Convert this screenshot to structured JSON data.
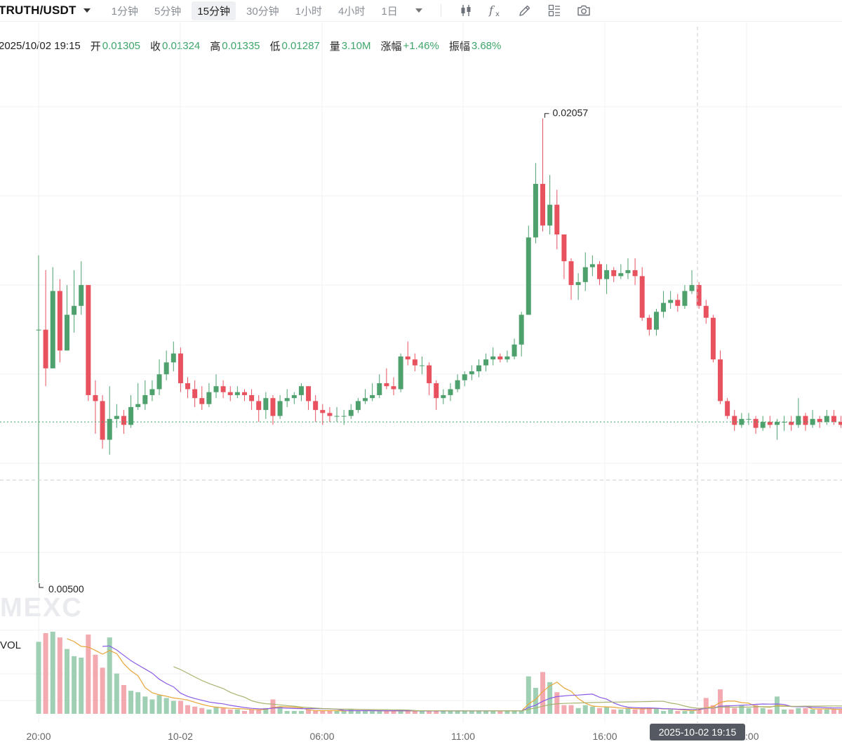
{
  "header": {
    "pair": "TRUTH/USDT",
    "intervals": [
      "1分钟",
      "5分钟",
      "15分钟",
      "30分钟",
      "1小时",
      "4小时",
      "1日"
    ],
    "active_interval": "15分钟",
    "tools": [
      "candlestick-type-icon",
      "indicator-fx-icon",
      "draw-pencil-icon",
      "layout-grid-icon",
      "screenshot-camera-icon"
    ]
  },
  "info": {
    "date": "2025/10/02 19:15",
    "open_label": "开",
    "open": "0.01305",
    "close_label": "收",
    "close": "0.01324",
    "high_label": "高",
    "high": "0.01335",
    "low_label": "低",
    "low": "0.01287",
    "vol_label": "量",
    "vol": "3.10M",
    "change_label": "涨幅",
    "change": "+1.46%",
    "amp_label": "振幅",
    "amp": "3.68%"
  },
  "chart_data": {
    "type": "candlestick",
    "x_tick_labels": [
      "20:00",
      "10-02",
      "06:00",
      "11:00",
      "16:00",
      "21:00"
    ],
    "max_label": "0.02057",
    "min_label": "0.00500",
    "crosshair_time_label": "2025-10-02 19:15",
    "volume_label": "VOL",
    "watermark": "MEXC",
    "colors": {
      "up": "#4ea16d",
      "down": "#e8525f",
      "up_vol": "#9fd0b4",
      "down_vol": "#f3a9b0",
      "ma_a": "#e9a63a",
      "ma_b": "#8a5ce6",
      "ma_c": "#a7b36d"
    },
    "candles": [
      [
        0.0135,
        0.0135,
        0.016,
        0.005,
        5.0
      ],
      [
        0.0135,
        0.0122,
        0.0155,
        0.0116,
        5.6
      ],
      [
        0.0122,
        0.0148,
        0.0156,
        0.0122,
        5.7
      ],
      [
        0.0148,
        0.0128,
        0.0152,
        0.0124,
        5.3
      ],
      [
        0.0128,
        0.014,
        0.015,
        0.0128,
        4.5
      ],
      [
        0.014,
        0.0143,
        0.0155,
        0.0134,
        4.0
      ],
      [
        0.0143,
        0.015,
        0.0158,
        0.014,
        3.9
      ],
      [
        0.015,
        0.0113,
        0.015,
        0.0111,
        5.5
      ],
      [
        0.0113,
        0.0111,
        0.0118,
        0.01,
        4.1
      ],
      [
        0.0111,
        0.0098,
        0.0113,
        0.0095,
        3.2
      ],
      [
        0.0098,
        0.0105,
        0.0116,
        0.0093,
        5.3
      ],
      [
        0.0105,
        0.0106,
        0.011,
        0.0102,
        2.8
      ],
      [
        0.0106,
        0.0103,
        0.0108,
        0.01,
        2.0
      ],
      [
        0.0103,
        0.0109,
        0.0113,
        0.0102,
        1.6
      ],
      [
        0.0109,
        0.011,
        0.0117,
        0.0108,
        1.5
      ],
      [
        0.011,
        0.0113,
        0.0118,
        0.0108,
        1.2
      ],
      [
        0.0113,
        0.0115,
        0.0118,
        0.0111,
        1.0
      ],
      [
        0.0115,
        0.012,
        0.0125,
        0.0113,
        1.3
      ],
      [
        0.012,
        0.0124,
        0.0128,
        0.0118,
        1.1
      ],
      [
        0.0124,
        0.0127,
        0.0131,
        0.0121,
        0.9
      ],
      [
        0.0127,
        0.0117,
        0.0129,
        0.0114,
        0.9
      ],
      [
        0.0117,
        0.0115,
        0.0119,
        0.0112,
        0.6
      ],
      [
        0.0115,
        0.0112,
        0.0118,
        0.0109,
        0.5
      ],
      [
        0.0112,
        0.011,
        0.0116,
        0.0108,
        0.4
      ],
      [
        0.011,
        0.0114,
        0.0117,
        0.0109,
        0.3
      ],
      [
        0.0114,
        0.0116,
        0.012,
        0.0112,
        0.5
      ],
      [
        0.0116,
        0.0114,
        0.0118,
        0.0112,
        0.4
      ],
      [
        0.0114,
        0.0113,
        0.0116,
        0.0111,
        0.3
      ],
      [
        0.0113,
        0.0114,
        0.0116,
        0.0112,
        0.3
      ],
      [
        0.0114,
        0.0113,
        0.0115,
        0.0111,
        0.2
      ],
      [
        0.0113,
        0.0111,
        0.0115,
        0.0108,
        0.3
      ],
      [
        0.0111,
        0.0108,
        0.0113,
        0.0104,
        0.3
      ],
      [
        0.0108,
        0.0112,
        0.0114,
        0.0105,
        0.4
      ],
      [
        0.0112,
        0.0106,
        0.0113,
        0.0103,
        1.0
      ],
      [
        0.0106,
        0.0111,
        0.0113,
        0.0105,
        0.5
      ],
      [
        0.0111,
        0.0112,
        0.0115,
        0.0109,
        0.2
      ],
      [
        0.0112,
        0.0113,
        0.0114,
        0.011,
        0.2
      ],
      [
        0.0113,
        0.0116,
        0.0117,
        0.0111,
        0.2
      ],
      [
        0.0116,
        0.0111,
        0.0116,
        0.0108,
        0.3
      ],
      [
        0.0111,
        0.0108,
        0.0113,
        0.0104,
        0.2
      ],
      [
        0.0108,
        0.0107,
        0.011,
        0.0103,
        0.2
      ],
      [
        0.0107,
        0.0106,
        0.0109,
        0.0104,
        0.2
      ],
      [
        0.0106,
        0.0106,
        0.0109,
        0.0104,
        0.2
      ],
      [
        0.0106,
        0.0106,
        0.0108,
        0.0103,
        0.2
      ],
      [
        0.0106,
        0.0108,
        0.011,
        0.0105,
        0.3
      ],
      [
        0.0108,
        0.0111,
        0.0112,
        0.0107,
        0.2
      ],
      [
        0.0111,
        0.0112,
        0.0115,
        0.011,
        0.2
      ],
      [
        0.0112,
        0.0113,
        0.0117,
        0.0111,
        0.2
      ],
      [
        0.0113,
        0.0117,
        0.012,
        0.0112,
        0.2
      ],
      [
        0.0117,
        0.0116,
        0.0122,
        0.0115,
        0.2
      ],
      [
        0.0116,
        0.0115,
        0.0119,
        0.0113,
        0.2
      ],
      [
        0.0115,
        0.0126,
        0.0127,
        0.0114,
        0.2
      ],
      [
        0.0126,
        0.0125,
        0.0131,
        0.0123,
        0.2
      ],
      [
        0.0125,
        0.0123,
        0.0127,
        0.0121,
        0.2
      ],
      [
        0.0123,
        0.0123,
        0.0126,
        0.012,
        0.2
      ],
      [
        0.0123,
        0.0117,
        0.0124,
        0.0113,
        0.2
      ],
      [
        0.0117,
        0.0112,
        0.0118,
        0.0108,
        0.2
      ],
      [
        0.0112,
        0.0113,
        0.0115,
        0.011,
        0.2
      ],
      [
        0.0113,
        0.0115,
        0.0117,
        0.0111,
        0.2
      ],
      [
        0.0115,
        0.0118,
        0.012,
        0.0114,
        0.2
      ],
      [
        0.0118,
        0.012,
        0.0121,
        0.0116,
        0.2
      ],
      [
        0.012,
        0.0121,
        0.0123,
        0.0118,
        0.2
      ],
      [
        0.0121,
        0.0123,
        0.0125,
        0.0119,
        0.2
      ],
      [
        0.0123,
        0.0125,
        0.0127,
        0.0121,
        0.2
      ],
      [
        0.0125,
        0.0126,
        0.0129,
        0.0123,
        0.2
      ],
      [
        0.0126,
        0.0125,
        0.0127,
        0.0124,
        0.2
      ],
      [
        0.0125,
        0.0126,
        0.0128,
        0.0124,
        0.2
      ],
      [
        0.0126,
        0.013,
        0.0132,
        0.0125,
        0.2
      ],
      [
        0.013,
        0.014,
        0.0141,
        0.0126,
        0.2
      ],
      [
        0.014,
        0.0166,
        0.017,
        0.014,
        2.6
      ],
      [
        0.0166,
        0.0184,
        0.0191,
        0.0164,
        1.8
      ],
      [
        0.0184,
        0.017,
        0.0206,
        0.0168,
        2.9
      ],
      [
        0.017,
        0.0177,
        0.0187,
        0.0167,
        2.2
      ],
      [
        0.0177,
        0.0167,
        0.0182,
        0.0162,
        1.5
      ],
      [
        0.0167,
        0.0158,
        0.0167,
        0.0152,
        0.6
      ],
      [
        0.0158,
        0.015,
        0.0159,
        0.0145,
        0.6
      ],
      [
        0.015,
        0.0151,
        0.0154,
        0.0145,
        0.4
      ],
      [
        0.0151,
        0.0156,
        0.0161,
        0.0148,
        0.6
      ],
      [
        0.0156,
        0.0157,
        0.016,
        0.0153,
        0.5
      ],
      [
        0.0157,
        0.0152,
        0.0158,
        0.015,
        0.4
      ],
      [
        0.0152,
        0.0155,
        0.0157,
        0.0147,
        0.5
      ],
      [
        0.0155,
        0.0153,
        0.0156,
        0.0151,
        0.3
      ],
      [
        0.0153,
        0.0154,
        0.0157,
        0.0152,
        0.3
      ],
      [
        0.0154,
        0.0155,
        0.0159,
        0.0152,
        0.4
      ],
      [
        0.0155,
        0.0153,
        0.0159,
        0.015,
        0.3
      ],
      [
        0.0153,
        0.0139,
        0.0156,
        0.0138,
        0.4
      ],
      [
        0.0139,
        0.0135,
        0.014,
        0.0133,
        0.4
      ],
      [
        0.0135,
        0.0141,
        0.0142,
        0.0133,
        0.4
      ],
      [
        0.0141,
        0.0144,
        0.0148,
        0.0139,
        0.2
      ],
      [
        0.0144,
        0.0145,
        0.0148,
        0.0142,
        0.3
      ],
      [
        0.0145,
        0.0143,
        0.0147,
        0.0141,
        0.2
      ],
      [
        0.0143,
        0.0148,
        0.015,
        0.0142,
        0.2
      ],
      [
        0.0148,
        0.015,
        0.0155,
        0.0147,
        0.2
      ],
      [
        0.015,
        0.0143,
        0.0151,
        0.0142,
        0.4
      ],
      [
        0.0143,
        0.0139,
        0.0145,
        0.0137,
        1.1
      ],
      [
        0.0139,
        0.0125,
        0.014,
        0.0124,
        0.6
      ],
      [
        0.0125,
        0.0111,
        0.0128,
        0.011,
        1.7
      ],
      [
        0.0111,
        0.0106,
        0.0112,
        0.0105,
        0.6
      ],
      [
        0.0106,
        0.0103,
        0.0108,
        0.0101,
        0.4
      ],
      [
        0.0103,
        0.0105,
        0.0107,
        0.0102,
        0.6
      ],
      [
        0.0105,
        0.0105,
        0.0107,
        0.0103,
        0.4
      ],
      [
        0.0105,
        0.0102,
        0.0106,
        0.01,
        0.6
      ],
      [
        0.0102,
        0.0104,
        0.0106,
        0.0101,
        0.4
      ],
      [
        0.0104,
        0.0103,
        0.0106,
        0.0102,
        0.3
      ],
      [
        0.0103,
        0.0104,
        0.0105,
        0.0098,
        1.2
      ],
      [
        0.0104,
        0.0104,
        0.0106,
        0.0101,
        0.3
      ],
      [
        0.0104,
        0.0103,
        0.0106,
        0.0101,
        0.3
      ],
      [
        0.0103,
        0.0106,
        0.0112,
        0.0102,
        0.4
      ],
      [
        0.0106,
        0.0103,
        0.0107,
        0.0101,
        0.4
      ],
      [
        0.0103,
        0.0105,
        0.0108,
        0.0102,
        0.3
      ],
      [
        0.0105,
        0.0104,
        0.0106,
        0.0102,
        0.3
      ],
      [
        0.0104,
        0.0106,
        0.0108,
        0.0103,
        0.3
      ],
      [
        0.0106,
        0.0104,
        0.0108,
        0.0103,
        0.3
      ],
      [
        0.0104,
        0.0103,
        0.0106,
        0.0102,
        0.3
      ],
      [
        0.0103,
        0.0102,
        0.0105,
        0.0101,
        0.3
      ],
      [
        0.0102,
        0.0103,
        0.0105,
        0.01,
        0.3
      ],
      [
        0.0103,
        0.0107,
        0.0108,
        0.0102,
        0.2
      ],
      [
        0.0107,
        0.0107,
        0.0111,
        0.0104,
        0.2
      ],
      [
        0.0107,
        0.0104,
        0.0108,
        0.0103,
        0.2
      ]
    ]
  }
}
